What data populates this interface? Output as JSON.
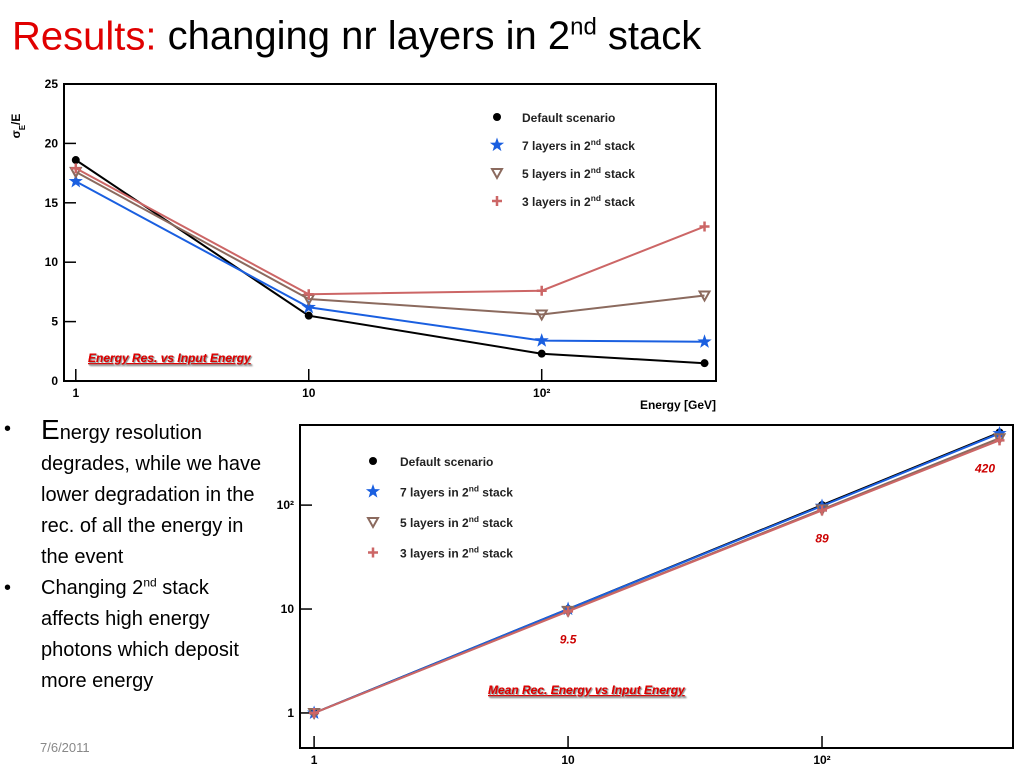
{
  "slide_title": {
    "lead": "Results:",
    "text": "changing nr layers in 2nd stack"
  },
  "bullets": [
    "Energy resolution degrades, while we have lower degradation in the rec. of all the energy in the event",
    "Changing 2nd stack affects high energy photons which deposit more energy"
  ],
  "date": "7/6/2011",
  "chart_data": [
    {
      "type": "line",
      "annotation": "Energy Res. vs Input  Energy",
      "y_label": [
        "σ",
        "E",
        "/E"
      ],
      "x_label": "Energy [GeV]",
      "x": [
        1,
        10,
        100,
        500
      ],
      "xscale": "log",
      "yscale": "linear",
      "xlim": [
        0.89,
        560
      ],
      "ylim": [
        0,
        25
      ],
      "xticks": [
        1,
        10,
        {
          "value": 100,
          "label": "10²"
        }
      ],
      "yticks": [
        0,
        5,
        10,
        15,
        20,
        25
      ],
      "legend": "upper-right",
      "series": [
        {
          "name": "Default scenario",
          "color": "#000000",
          "marker": "circle",
          "values": [
            18.6,
            5.5,
            2.3,
            1.5
          ]
        },
        {
          "name": "7 layers in 2nd stack",
          "color": "#1a5fe0",
          "marker": "star",
          "values": [
            16.8,
            6.2,
            3.4,
            3.3
          ]
        },
        {
          "name": "5 layers in 2nd stack",
          "color": "#8b6a5e",
          "marker": "triangle-down",
          "values": [
            17.6,
            6.9,
            5.6,
            7.2
          ]
        },
        {
          "name": "3 layers in 2nd stack",
          "color": "#cc6666",
          "marker": "plus",
          "values": [
            17.9,
            7.3,
            7.6,
            13.0
          ]
        }
      ]
    },
    {
      "type": "line",
      "annotation": "Mean Rec. Energy vs Input  Energy",
      "x": [
        1,
        10,
        100,
        500
      ],
      "xscale": "log",
      "yscale": "log",
      "xlim": [
        0.88,
        565
      ],
      "ylim": [
        0.46,
        590
      ],
      "xticks": [
        1,
        10,
        {
          "value": 100,
          "label": "10²"
        }
      ],
      "yticks": [
        1,
        10,
        {
          "value": 100,
          "label": "10²"
        }
      ],
      "legend": "upper-left",
      "series": [
        {
          "name": "Default scenario",
          "color": "#000000",
          "marker": "circle",
          "values": [
            1,
            10,
            100,
            500
          ]
        },
        {
          "name": "7 layers in 2nd stack",
          "color": "#1a5fe0",
          "marker": "star",
          "values": [
            1,
            10,
            98,
            490
          ]
        },
        {
          "name": "5 layers in 2nd stack",
          "color": "#8b6a5e",
          "marker": "triangle-down",
          "values": [
            1,
            9.6,
            91,
            440
          ]
        },
        {
          "name": "3 layers in 2nd stack",
          "color": "#cc6666",
          "marker": "plus",
          "values": [
            1,
            9.5,
            89,
            420
          ],
          "value_labels": [
            null,
            "9.5",
            "89",
            "420"
          ]
        }
      ]
    }
  ]
}
